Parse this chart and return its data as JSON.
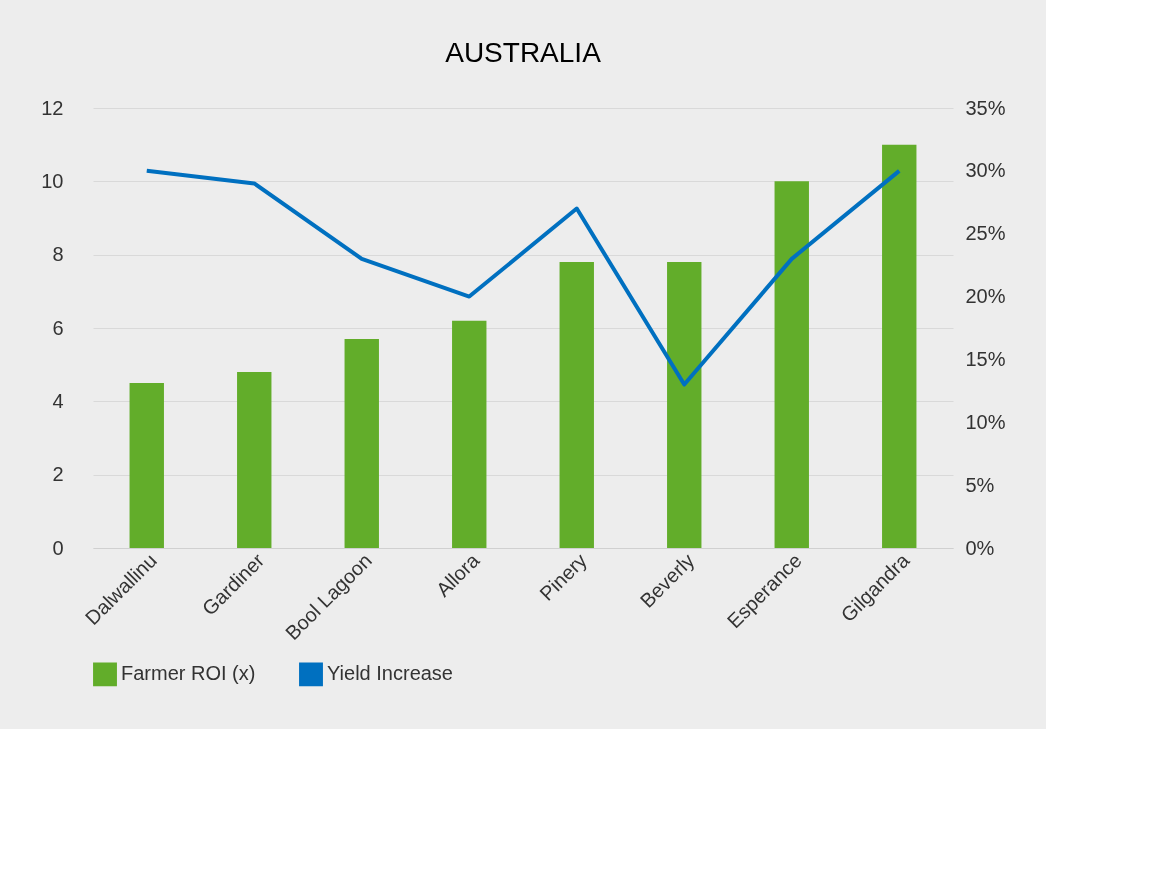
{
  "chart_data": {
    "type": "bar",
    "title": "AUSTRALIA",
    "categories": [
      "Dalwallinu",
      "Gardiner",
      "Bool Lagoon",
      "Allora",
      "Pinery",
      "Beverly",
      "Esperance",
      "Gilgandra"
    ],
    "series": [
      {
        "name": "Farmer ROI (x)",
        "color": "#62ad2a",
        "values": [
          4.5,
          4.8,
          5.7,
          6.2,
          7.8,
          7.8,
          10,
          11
        ]
      },
      {
        "name": "Yield Increase",
        "type": "line",
        "axis": "y2",
        "color": "#0070c0",
        "values": [
          30,
          29,
          23,
          20,
          27,
          13,
          23,
          30
        ]
      }
    ],
    "ylim": [
      0,
      12
    ],
    "yticks": [
      0,
      2,
      4,
      6,
      8,
      10,
      12
    ],
    "y2lim": [
      0,
      35
    ],
    "y2ticks": [
      {
        "value": 0,
        "label": "0%"
      },
      {
        "value": 5,
        "label": "5%"
      },
      {
        "value": 10,
        "label": "10%"
      },
      {
        "value": 15,
        "label": "15%"
      },
      {
        "value": 20,
        "label": "20%"
      },
      {
        "value": 25,
        "label": "25%"
      },
      {
        "value": 30,
        "label": "30%"
      },
      {
        "value": 35,
        "label": "35%"
      }
    ],
    "grid": "y",
    "legend": "bottom",
    "marker": "none",
    "line_style": "solid"
  }
}
